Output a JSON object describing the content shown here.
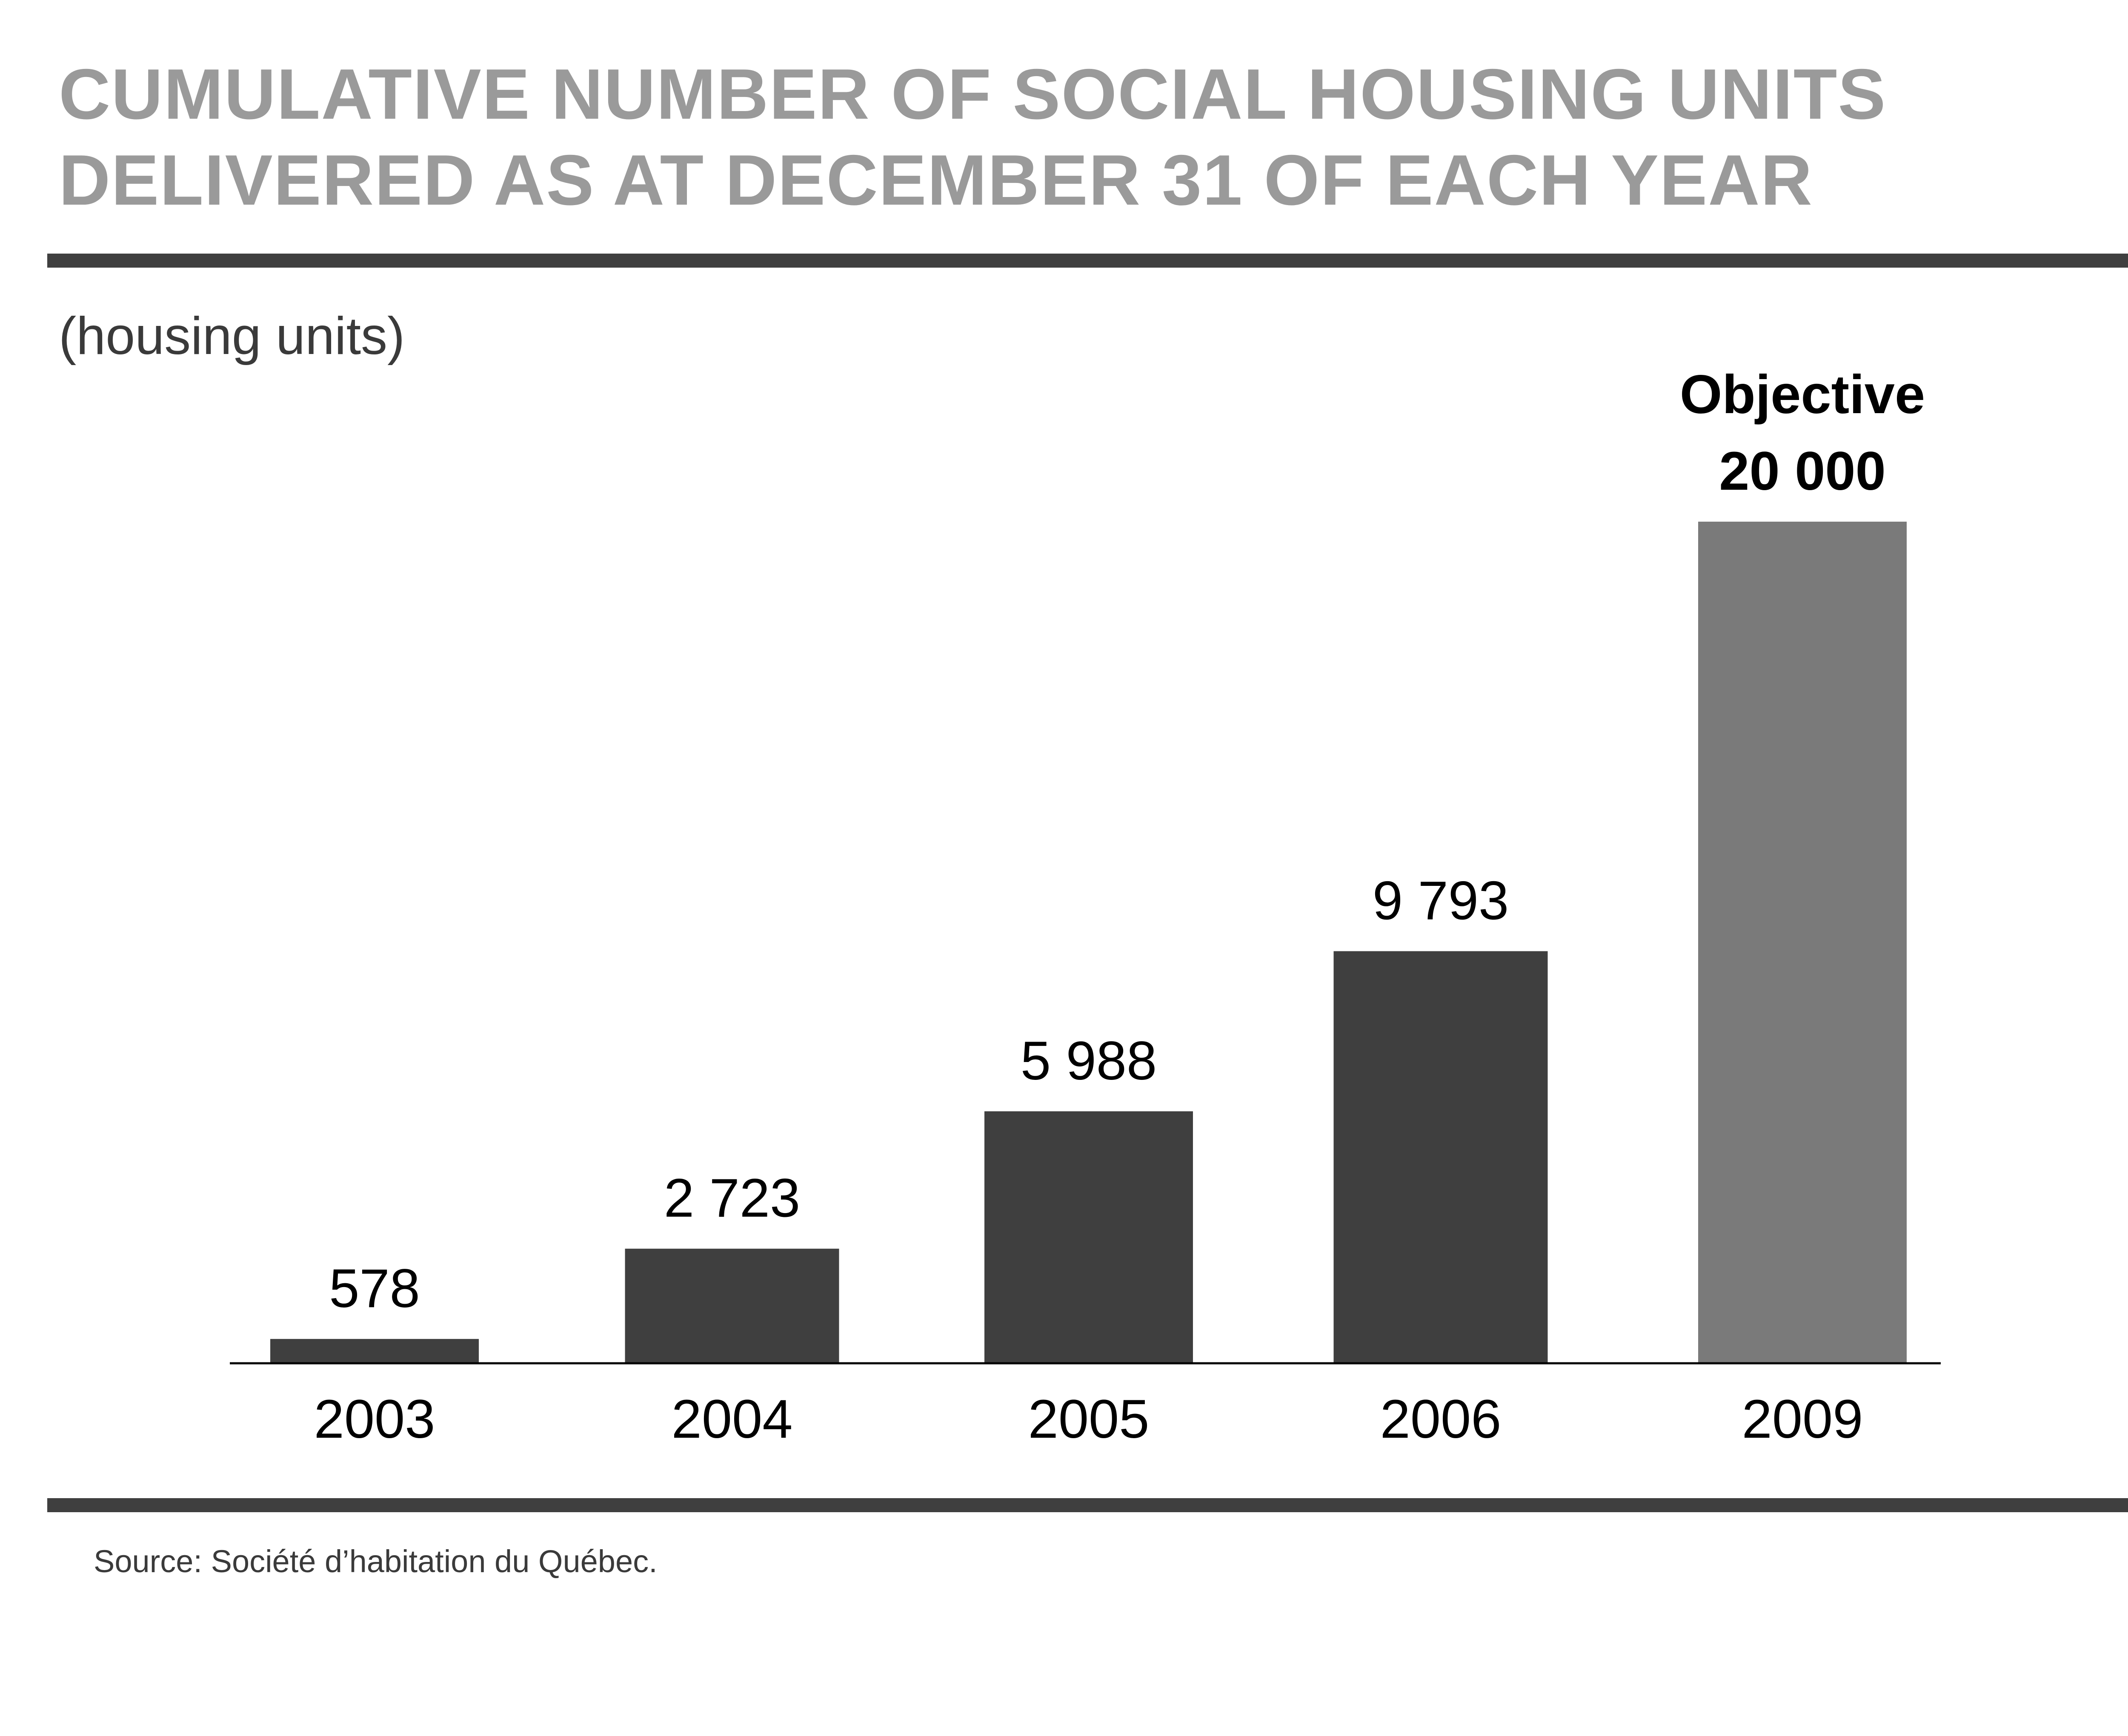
{
  "title_lines": [
    "CUMULATIVE NUMBER OF SOCIAL HOUSING UNITS",
    "DELIVERED AS AT DECEMBER 31 OF EACH YEAR"
  ],
  "unit_label": "(housing units)",
  "source": "Source: Société d’habitation du Québec.",
  "colors": {
    "title": "#9a9a9a",
    "rules": "#3f3f3f",
    "actual_bar": "#3f3f3f",
    "objective_bar": "#7a7a7a",
    "labels": "#000000"
  },
  "chart_data": {
    "type": "bar",
    "title": "",
    "xlabel": "",
    "ylabel": "(housing units)",
    "categories": [
      "2003",
      "2004",
      "2005",
      "2006",
      "2009"
    ],
    "values": [
      578,
      2723,
      5988,
      9793,
      20000
    ],
    "value_labels": [
      "578",
      "2 723",
      "5 988",
      "9 793",
      "20 000"
    ],
    "objective_index": 4,
    "objective_caption": "Objective",
    "ylim": [
      0,
      20000
    ],
    "grid": false,
    "legend": "none"
  }
}
